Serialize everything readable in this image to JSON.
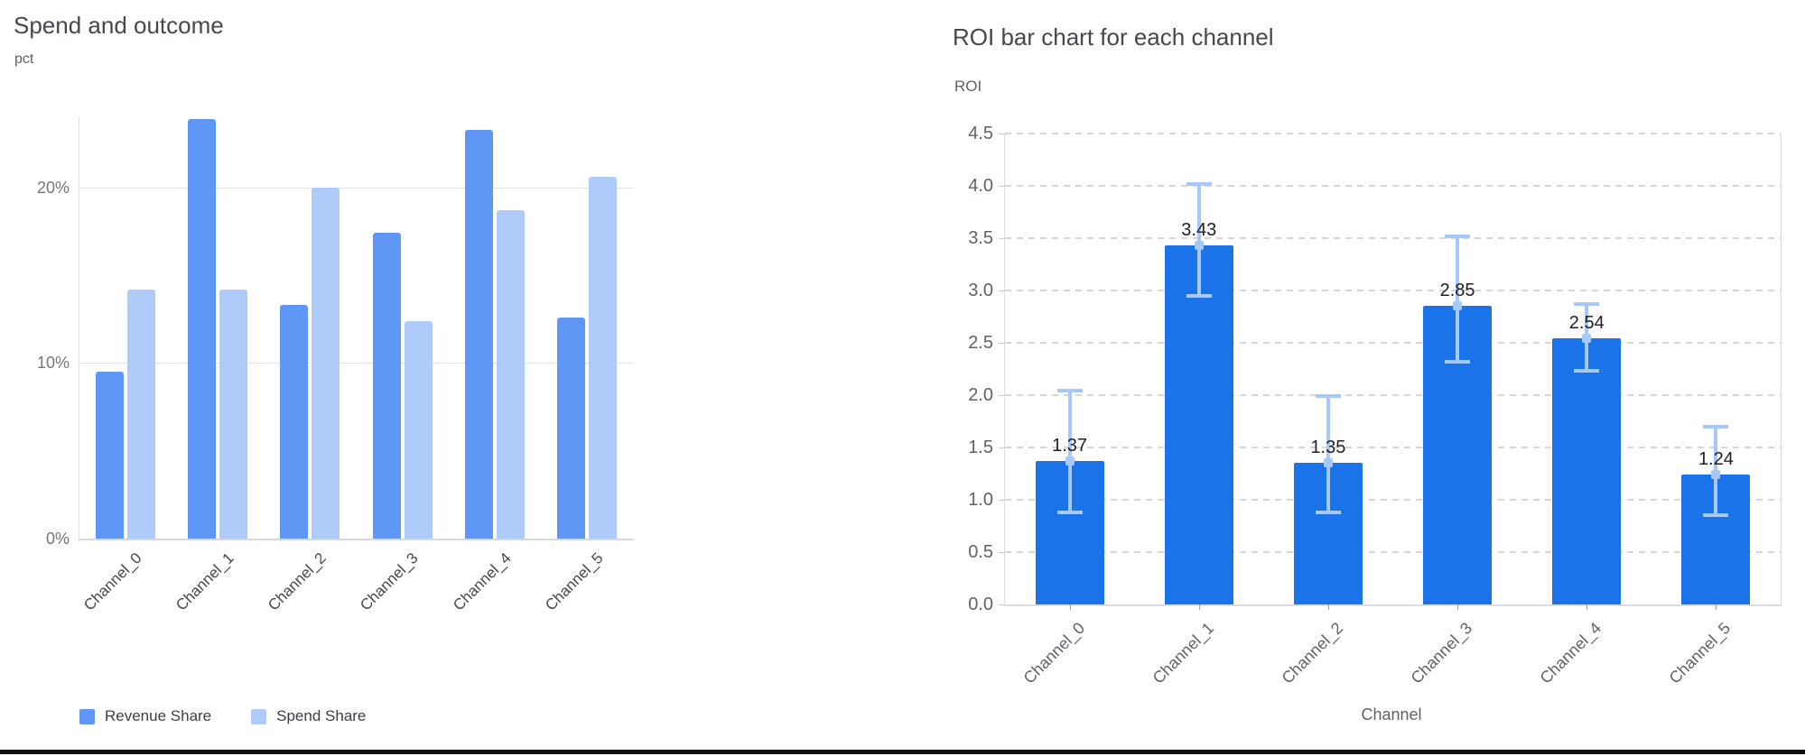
{
  "chart_data": [
    {
      "type": "bar",
      "title": "Spend and outcome",
      "ylabel": "pct",
      "xlabel": "",
      "categories": [
        "Channel_0",
        "Channel_1",
        "Channel_2",
        "Channel_3",
        "Channel_4",
        "Channel_5"
      ],
      "series": [
        {
          "name": "Revenue Share",
          "color": "#5e97f6",
          "values": [
            9.5,
            23.9,
            13.3,
            17.4,
            23.3,
            12.6
          ]
        },
        {
          "name": "Spend Share",
          "color": "#aecbfa",
          "values": [
            14.2,
            14.2,
            20.0,
            12.4,
            18.7,
            20.6
          ]
        }
      ],
      "ylim": [
        0,
        24
      ],
      "yticks": [
        {
          "v": 0,
          "label": "0%"
        },
        {
          "v": 10,
          "label": "10%"
        },
        {
          "v": 20,
          "label": "20%"
        }
      ],
      "grid": "solid",
      "legend_position": "bottom"
    },
    {
      "type": "bar",
      "title": "ROI bar chart for each channel",
      "ylabel": "ROI",
      "xlabel": "Channel",
      "categories": [
        "Channel_0",
        "Channel_1",
        "Channel_2",
        "Channel_3",
        "Channel_4",
        "Channel_5"
      ],
      "values": [
        1.37,
        3.43,
        1.35,
        2.85,
        2.54,
        1.24
      ],
      "data_labels": [
        "1.37",
        "3.43",
        "1.35",
        "2.85",
        "2.54",
        "1.24"
      ],
      "error_low": [
        0.88,
        2.95,
        0.88,
        2.32,
        2.23,
        0.85
      ],
      "error_high": [
        2.04,
        4.02,
        1.99,
        3.52,
        2.87,
        1.7
      ],
      "bar_color": "#1a73e8",
      "error_color": "#a6c8fb",
      "ylim": [
        0,
        4.5
      ],
      "ytick_labels": [
        "0.0",
        "0.5",
        "1.0",
        "1.5",
        "2.0",
        "2.5",
        "3.0",
        "3.5",
        "4.0",
        "4.5"
      ],
      "grid": "dashed",
      "legend_position": "none"
    }
  ]
}
